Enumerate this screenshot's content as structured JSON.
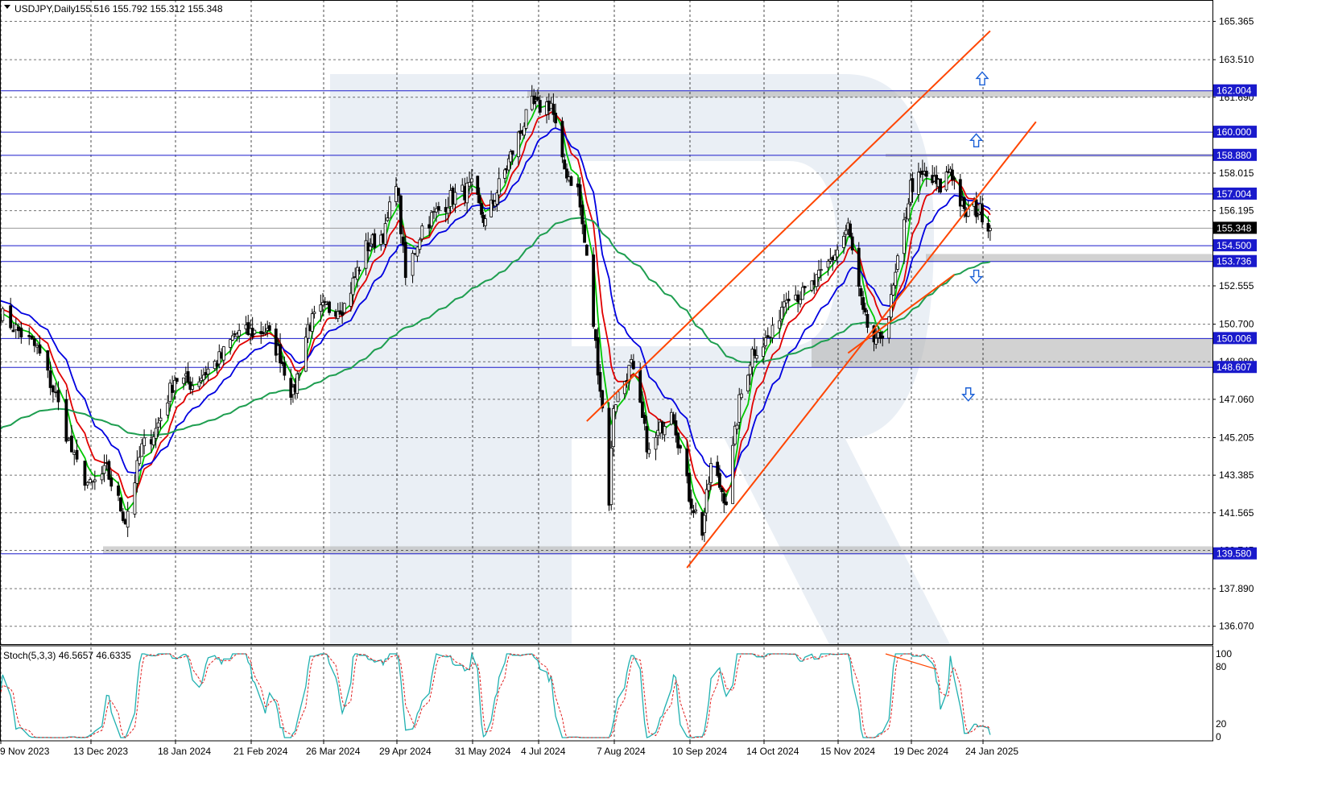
{
  "window": {
    "symbol_label": "USDJPY,Daily",
    "ohlc_label": "155.516 155.792 155.312 155.348"
  },
  "indicator": {
    "label": "Stoch(5,3,3) 46.5657 46.6335",
    "levels": [
      "100",
      "80",
      "20",
      "0"
    ]
  },
  "chart_data": [
    {
      "type": "candlestick",
      "title": "USDJPY,Daily",
      "ylim": [
        135.2,
        166.4
      ],
      "price_axis_ticks": [
        "165.365",
        "163.510",
        "161.690",
        "158.015",
        "156.195",
        "152.555",
        "150.700",
        "148.880",
        "147.060",
        "145.205",
        "143.385",
        "141.565",
        "139.745",
        "137.890",
        "136.070"
      ],
      "x_tick_labels": [
        "9 Nov 2023",
        "13 Dec 2023",
        "18 Jan 2024",
        "21 Feb 2024",
        "26 Mar 2024",
        "29 Apr 2024",
        "31 May 2024",
        "4 Jul 2024",
        "7 Aug 2024",
        "10 Sep 2024",
        "14 Oct 2024",
        "15 Nov 2024",
        "19 Dec 2024",
        "24 Jan 2025"
      ],
      "current_price": "155.348",
      "horizontal_levels": [
        "162.004",
        "160.000",
        "158.880",
        "157.004",
        "154.500",
        "153.736",
        "150.006",
        "148.607",
        "139.580"
      ],
      "close_anchors": [
        [
          "9 Nov 2023",
          151.2
        ],
        [
          "23 Nov 2023",
          149.5
        ],
        [
          "30 Nov 2023",
          147.2
        ],
        [
          "7 Dec 2023",
          144.1
        ],
        [
          "13 Dec 2023",
          142.8
        ],
        [
          "20 Dec 2023",
          143.6
        ],
        [
          "28 Dec 2023",
          141.2
        ],
        [
          "4 Jan 2024",
          144.7
        ],
        [
          "10 Jan 2024",
          145.6
        ],
        [
          "18 Jan 2024",
          148.1
        ],
        [
          "26 Jan 2024",
          147.8
        ],
        [
          "2 Feb 2024",
          148.5
        ],
        [
          "8 Feb 2024",
          149.1
        ],
        [
          "14 Feb 2024",
          150.2
        ],
        [
          "21 Feb 2024",
          150.3
        ],
        [
          "28 Feb 2024",
          150.4
        ],
        [
          "6 Mar 2024",
          149.2
        ],
        [
          "12 Mar 2024",
          147.2
        ],
        [
          "19 Mar 2024",
          150.6
        ],
        [
          "26 Mar 2024",
          151.4
        ],
        [
          "5 Apr 2024",
          151.6
        ],
        [
          "15 Apr 2024",
          154.4
        ],
        [
          "24 Apr 2024",
          155.2
        ],
        [
          "29 Apr 2024",
          157.8
        ],
        [
          "3 May 2024",
          152.9
        ],
        [
          "10 May 2024",
          155.4
        ],
        [
          "22 May 2024",
          156.8
        ],
        [
          "31 May 2024",
          157.3
        ],
        [
          "7 Jun 2024",
          155.6
        ],
        [
          "14 Jun 2024",
          157.4
        ],
        [
          "24 Jun 2024",
          159.8
        ],
        [
          "1 Jul 2024",
          161.3
        ],
        [
          "4 Jul 2024",
          161.2
        ],
        [
          "10 Jul 2024",
          161.4
        ],
        [
          "15 Jul 2024",
          158.4
        ],
        [
          "22 Jul 2024",
          157.2
        ],
        [
          "26 Jul 2024",
          153.8
        ],
        [
          "2 Aug 2024",
          146.6
        ],
        [
          "5 Aug 2024",
          142.2
        ],
        [
          "7 Aug 2024",
          146.8
        ],
        [
          "15 Aug 2024",
          148.7
        ],
        [
          "23 Aug 2024",
          144.4
        ],
        [
          "2 Sep 2024",
          146.8
        ],
        [
          "10 Sep 2024",
          142.4
        ],
        [
          "16 Sep 2024",
          140.7
        ],
        [
          "20 Sep 2024",
          143.8
        ],
        [
          "27 Sep 2024",
          142.2
        ],
        [
          "3 Oct 2024",
          146.9
        ],
        [
          "9 Oct 2024",
          149.4
        ],
        [
          "14 Oct 2024",
          149.8
        ],
        [
          "18 Oct 2024",
          150.2
        ],
        [
          "24 Oct 2024",
          152.3
        ],
        [
          "31 Oct 2024",
          152.1
        ],
        [
          "7 Nov 2024",
          152.9
        ],
        [
          "15 Nov 2024",
          154.3
        ],
        [
          "20 Nov 2024",
          155.4
        ],
        [
          "27 Nov 2024",
          151.1
        ],
        [
          "3 Dec 2024",
          149.6
        ],
        [
          "9 Dec 2024",
          151.2
        ],
        [
          "13 Dec 2024",
          153.6
        ],
        [
          "19 Dec 2024",
          157.4
        ],
        [
          "26 Dec 2024",
          157.9
        ],
        [
          "3 Jan 2025",
          157.3
        ],
        [
          "8 Jan 2025",
          158.3
        ],
        [
          "15 Jan 2025",
          156.0
        ],
        [
          "20 Jan 2025",
          156.3
        ],
        [
          "24 Jan 2025",
          156.1
        ],
        [
          "28 Jan 2025",
          155.348
        ]
      ],
      "moving_averages": [
        {
          "color": "#00c800",
          "period_hint": "fast"
        },
        {
          "color": "#e00000",
          "period_hint": "medium"
        },
        {
          "color": "#0000e0",
          "period_hint": "slow"
        },
        {
          "color": "#1e9e50",
          "period_hint": "long"
        }
      ]
    }
  ],
  "colors": {
    "candle": "#000000",
    "level_line": "#1a1acc",
    "level_label_bg": "#1a1acc",
    "channel": "#ff4500",
    "zone": "#b4b4b4",
    "arrow": "#1a5fd6",
    "stoch_main": "#20b0b0",
    "stoch_signal": "#e02020",
    "grid": "#000000",
    "watermark": "#dfe6ef"
  },
  "arrows": [
    "up-arrow",
    "up-arrow",
    "down-arrow",
    "down-arrow"
  ]
}
